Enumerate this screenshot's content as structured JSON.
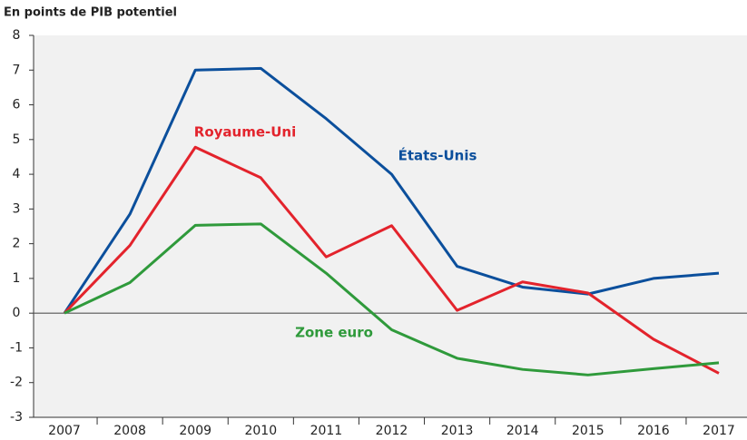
{
  "chart_data": {
    "type": "line",
    "title": "En points de PIB potentiel",
    "categories": [
      "2007",
      "2008",
      "2009",
      "2010",
      "2011",
      "2012",
      "2013",
      "2014",
      "2015",
      "2016",
      "2017"
    ],
    "series": [
      {
        "name": "États-Unis",
        "color": "#0b4f9c",
        "values": [
          0,
          2.85,
          7.0,
          7.05,
          5.6,
          4.0,
          1.35,
          0.75,
          0.55,
          1.0,
          1.15
        ]
      },
      {
        "name": "Royaume-Uni",
        "color": "#e3232c",
        "values": [
          0,
          1.95,
          4.78,
          3.9,
          1.62,
          2.52,
          0.08,
          0.9,
          0.58,
          -0.75,
          -1.73
        ]
      },
      {
        "name": "Zone euro",
        "color": "#2f9a3b",
        "values": [
          0,
          0.88,
          2.53,
          2.57,
          1.15,
          -0.48,
          -1.3,
          -1.62,
          -1.78,
          -1.6,
          -1.43
        ]
      }
    ],
    "ylim": [
      -3,
      8
    ],
    "yticks": [
      -3,
      -2,
      -1,
      0,
      1,
      2,
      3,
      4,
      5,
      6,
      7,
      8
    ]
  }
}
